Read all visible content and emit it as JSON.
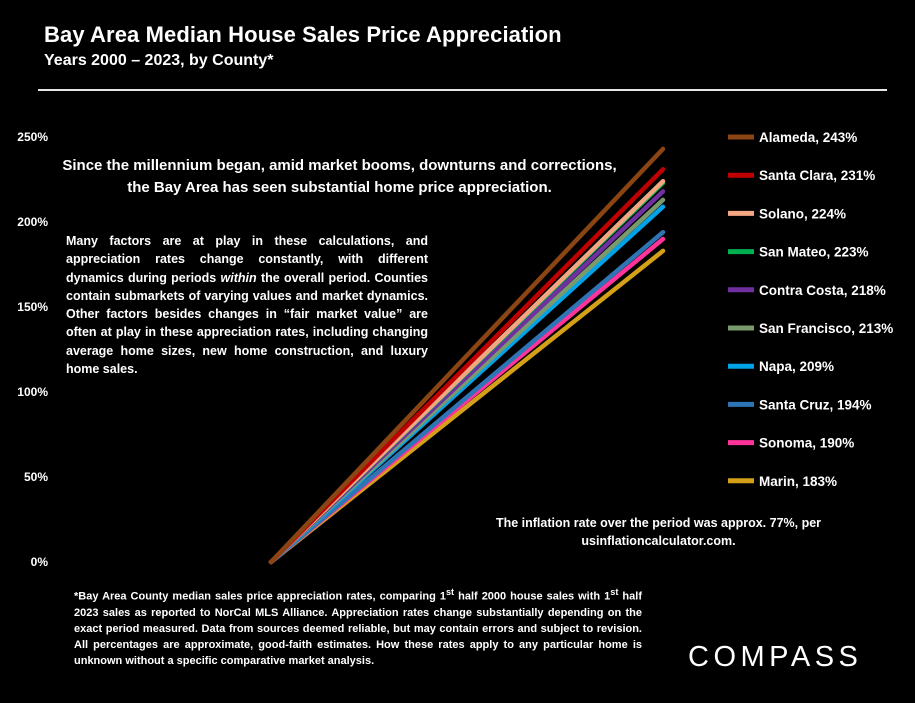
{
  "header": {
    "title": "Bay Area Median House Sales Price Appreciation",
    "subtitle": "Years 2000 – 2023, by County*"
  },
  "notes": {
    "headline": "Since the millennium began, amid market booms, downturns and corrections, the Bay Area has seen substantial home price appreciation.",
    "body_before": "Many factors are at play in these calculations, and appreciation rates change constantly, with different dynamics during periods ",
    "body_em": "within",
    "body_after": " the overall period. Counties contain submarkets of varying values and market dynamics. Other factors besides changes in “fair market value” are often at play in these appreciation rates, including  changing average home sizes, new home construction, and luxury home sales.",
    "inflation": "The inflation rate over the period was approx. 77%, per usinflationcalculator.com.",
    "footnote_1": "*Bay Area County median sales price appreciation rates, comparing 1",
    "footnote_sup1": "st",
    "footnote_2": " half 2000 house sales with 1",
    "footnote_sup2": "st",
    "footnote_3": " half 2023 sales as reported to NorCal MLS Alliance. Appreciation rates change substantially depending on the exact period measured. Data from sources deemed reliable, but may contain errors and subject to revision. All percentages are approximate, good-faith estimates. How these rates apply to any particular home is unknown without a specific comparative market analysis."
  },
  "logo": {
    "text": "COMPASS"
  },
  "chart_data": {
    "type": "line",
    "title": "Bay Area Median House Sales Price Appreciation",
    "subtitle": "Years 2000 – 2023, by County*",
    "x": [
      "2000",
      "2023"
    ],
    "ylim": [
      0,
      250
    ],
    "yticks": [
      0,
      50,
      100,
      150,
      200,
      250
    ],
    "ytick_labels": [
      "0%",
      "50%",
      "100%",
      "150%",
      "200%",
      "250%"
    ],
    "grid": false,
    "legend_position": "right",
    "series": [
      {
        "name": "Alameda",
        "label": "Alameda, 243%",
        "values": [
          0,
          243
        ],
        "color": "#8b4513"
      },
      {
        "name": "Santa Clara",
        "label": "Santa Clara, 231%",
        "values": [
          0,
          231
        ],
        "color": "#c00000"
      },
      {
        "name": "Solano",
        "label": "Solano, 224%",
        "values": [
          0,
          224
        ],
        "color": "#f4a582"
      },
      {
        "name": "San Mateo",
        "label": "San Mateo, 223%",
        "values": [
          0,
          223
        ],
        "color": "#00b050"
      },
      {
        "name": "Contra Costa",
        "label": "Contra Costa, 218%",
        "values": [
          0,
          218
        ],
        "color": "#7030a0"
      },
      {
        "name": "San Francisco",
        "label": "San Francisco, 213%",
        "values": [
          0,
          213
        ],
        "color": "#7a9a6e"
      },
      {
        "name": "Napa",
        "label": "Napa, 209%",
        "values": [
          0,
          209
        ],
        "color": "#00a2e8"
      },
      {
        "name": "Santa Cruz",
        "label": "Santa Cruz, 194%",
        "values": [
          0,
          194
        ],
        "color": "#2e75b6"
      },
      {
        "name": "Sonoma",
        "label": "Sonoma, 190%",
        "values": [
          0,
          190
        ],
        "color": "#ff3399"
      },
      {
        "name": "Marin",
        "label": "Marin, 183%",
        "values": [
          0,
          183
        ],
        "color": "#d4a017"
      }
    ]
  }
}
